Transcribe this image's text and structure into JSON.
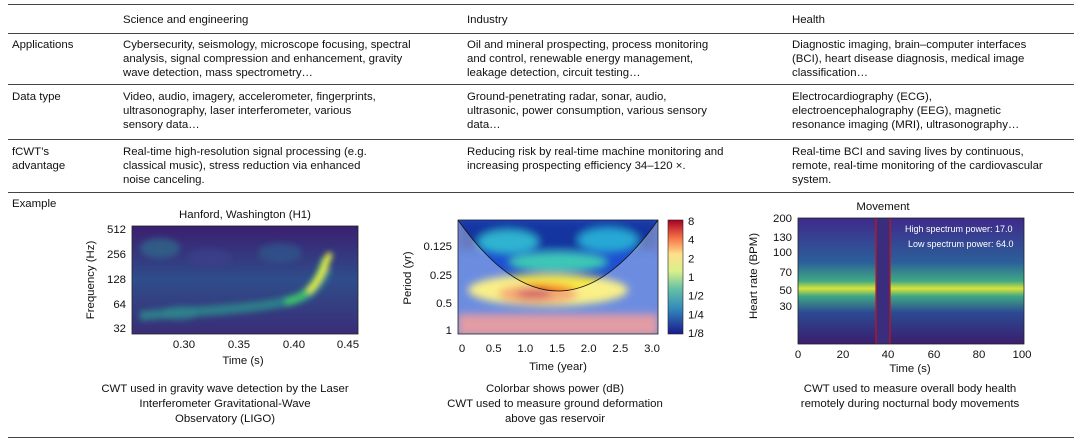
{
  "columns": [
    "Science and engineering",
    "Industry",
    "Health"
  ],
  "rows": [
    {
      "label": "Applications",
      "cells": [
        [
          "Cybersecurity, seismology, microscope focusing, spectral",
          "analysis, signal compression and enhancement, gravity",
          "wave detection, mass spectrometry…"
        ],
        [
          "Oil and mineral prospecting, process monitoring",
          "and control, renewable energy management,",
          "leakage detection, circuit testing…"
        ],
        [
          "Diagnostic imaging, brain–computer interfaces",
          "(BCI), heart disease diagnosis, medical image",
          "classification…"
        ]
      ]
    },
    {
      "label": "Data type",
      "cells": [
        [
          "Video, audio, imagery, accelerometer, fingerprints,",
          "ultrasonography, laser interferometer, various",
          "sensory data…"
        ],
        [
          "Ground-penetrating radar, sonar, audio,",
          "ultrasonic, power consumption, various sensory",
          "data…"
        ],
        [
          "Electrocardiography (ECG),",
          "electroencephalography (EEG), magnetic",
          "resonance imaging (MRI), ultrasonography…"
        ]
      ]
    },
    {
      "label": [
        "fCWT’s",
        "advantage"
      ],
      "cells": [
        [
          "Real-time high-resolution signal processing (e.g.",
          "classical music), stress reduction via enhanced",
          "noise canceling."
        ],
        [
          "Reducing risk by real-time machine monitoring and",
          "increasing prospecting efficiency 34–120 ×."
        ],
        [
          "Real-time BCI and saving lives by continuous,",
          "remote, real-time monitoring of the cardiovascular",
          "system."
        ]
      ]
    }
  ],
  "example_label": "Example",
  "figures": [
    {
      "title": "Hanford, Washington (H1)",
      "ylabel": "Frequency (Hz)",
      "xlabel": "Time (s)",
      "yticks": [
        "512",
        "256",
        "128",
        "64",
        "32"
      ],
      "xticks": [
        "0.30",
        "0.35",
        "0.40",
        "0.45"
      ],
      "caption": [
        "CWT used in gravity wave detection by the Laser",
        "Interferometer Gravitational-Wave",
        "Observatory (LIGO)"
      ]
    },
    {
      "title": "",
      "ylabel": "Period (yr)",
      "xlabel": "Time (year)",
      "yticks": [
        "0.125",
        "0.25",
        "0.5",
        "1"
      ],
      "xticks": [
        "0",
        "0.5",
        "1.0",
        "1.5",
        "2.0",
        "2.5",
        "3.0"
      ],
      "colorbar": {
        "ticks": [
          "8",
          "4",
          "2",
          "1",
          "1/2",
          "1/4",
          "1/8"
        ],
        "colors": [
          "#d7191c",
          "#fdae61",
          "#ffffbf",
          "#abdda4",
          "#2b83ba",
          "#1a237e"
        ]
      },
      "caption": [
        "Colorbar shows power (dB)",
        "CWT used to measure ground deformation",
        "above gas reservoir"
      ]
    },
    {
      "title": "Movement",
      "ylabel": "Heart rate (BPM)",
      "xlabel": "Time (s)",
      "yticks": [
        "200",
        "130",
        "100",
        "70",
        "50",
        "30"
      ],
      "xticks": [
        "0",
        "20",
        "40",
        "60",
        "80",
        "100"
      ],
      "annotations": [
        "High spectrum power: 17.0",
        "Low spectrum power: 64.0"
      ],
      "caption": [
        "CWT used to measure overall body health",
        "remotely during nocturnal body movements"
      ]
    }
  ]
}
